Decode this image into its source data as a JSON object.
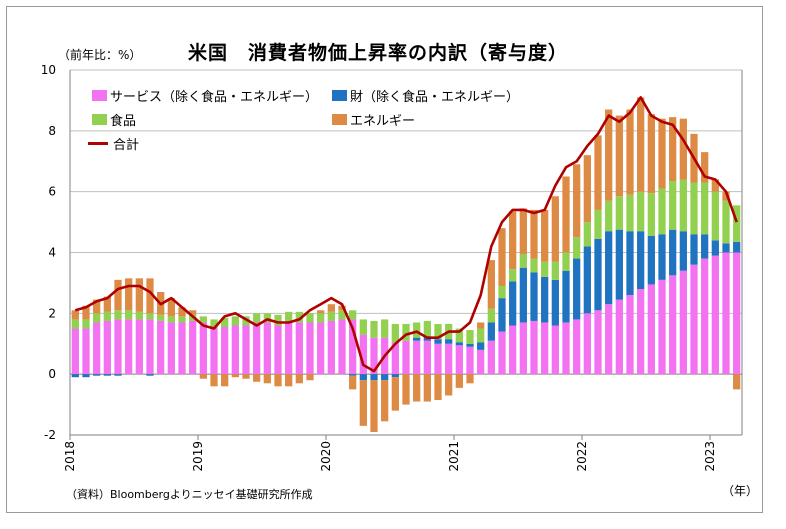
{
  "title": "米国　消費者物価上昇率の内訳（寄与度）",
  "unit_label": "（前年比：%）",
  "x_unit_label": "（年）",
  "source": "（資料）Bloombergよりニッセイ基礎研究所作成",
  "legend": {
    "services": "サービス（除く食品・エネルギー）",
    "goods": "財（除く食品・エネルギー）",
    "food": "食品",
    "energy": "エネルギー",
    "total": "合計"
  },
  "colors": {
    "services": "#f272f2",
    "goods": "#1f73c0",
    "food": "#92d050",
    "energy": "#dd8a45",
    "total": "#b00000",
    "grid": "#bfbfbf"
  },
  "chart_data": {
    "type": "bar",
    "stacked": true,
    "ylim": [
      -2,
      10
    ],
    "yticks": [
      -2,
      0,
      2,
      4,
      6,
      8,
      10
    ],
    "xtick_labels": [
      "2018",
      "2019",
      "2020",
      "2021",
      "2022",
      "2023"
    ],
    "grid": true,
    "categories": [
      "2018-01",
      "2018-02",
      "2018-03",
      "2018-04",
      "2018-05",
      "2018-06",
      "2018-07",
      "2018-08",
      "2018-09",
      "2018-10",
      "2018-11",
      "2018-12",
      "2019-01",
      "2019-02",
      "2019-03",
      "2019-04",
      "2019-05",
      "2019-06",
      "2019-07",
      "2019-08",
      "2019-09",
      "2019-10",
      "2019-11",
      "2019-12",
      "2020-01",
      "2020-02",
      "2020-03",
      "2020-04",
      "2020-05",
      "2020-06",
      "2020-07",
      "2020-08",
      "2020-09",
      "2020-10",
      "2020-11",
      "2020-12",
      "2021-01",
      "2021-02",
      "2021-03",
      "2021-04",
      "2021-05",
      "2021-06",
      "2021-07",
      "2021-08",
      "2021-09",
      "2021-10",
      "2021-11",
      "2021-12",
      "2022-01",
      "2022-02",
      "2022-03",
      "2022-04",
      "2022-05",
      "2022-06",
      "2022-07",
      "2022-08",
      "2022-09",
      "2022-10",
      "2022-11",
      "2022-12",
      "2023-01",
      "2023-02",
      "2023-03"
    ],
    "series": [
      {
        "name": "サービス（除く食品・エネルギー）",
        "key": "services",
        "values": [
          1.5,
          1.5,
          1.7,
          1.75,
          1.8,
          1.8,
          1.8,
          1.8,
          1.75,
          1.7,
          1.7,
          1.75,
          1.7,
          1.5,
          1.55,
          1.6,
          1.6,
          1.7,
          1.7,
          1.6,
          1.7,
          1.7,
          1.7,
          1.7,
          1.75,
          1.8,
          1.8,
          1.3,
          1.2,
          1.2,
          1.05,
          1.1,
          1.1,
          1.1,
          1.0,
          1.0,
          0.95,
          0.9,
          0.8,
          1.1,
          1.4,
          1.6,
          1.7,
          1.75,
          1.7,
          1.6,
          1.7,
          1.8,
          2.0,
          2.1,
          2.3,
          2.45,
          2.6,
          2.8,
          2.95,
          3.1,
          3.25,
          3.4,
          3.6,
          3.8,
          3.9,
          4.0,
          4.0
        ]
      },
      {
        "name": "財（除く食品・エネルギー）",
        "key": "goods",
        "values": [
          -0.1,
          -0.1,
          -0.05,
          -0.05,
          -0.05,
          0.0,
          0.0,
          -0.05,
          0.0,
          0.0,
          0.0,
          0.0,
          0.0,
          0.0,
          0.0,
          0.0,
          0.0,
          0.0,
          0.0,
          0.0,
          0.0,
          0.0,
          0.0,
          0.0,
          0.0,
          0.0,
          -0.05,
          -0.2,
          -0.2,
          -0.2,
          -0.1,
          0.0,
          0.1,
          0.15,
          0.15,
          0.15,
          0.1,
          0.1,
          0.25,
          0.6,
          1.1,
          1.45,
          1.8,
          1.6,
          1.5,
          1.5,
          1.7,
          2.0,
          2.2,
          2.35,
          2.4,
          2.3,
          2.1,
          1.9,
          1.6,
          1.5,
          1.5,
          1.3,
          1.0,
          0.8,
          0.5,
          0.3,
          0.35
        ]
      },
      {
        "name": "食品",
        "key": "food",
        "values": [
          0.3,
          0.3,
          0.3,
          0.3,
          0.3,
          0.3,
          0.25,
          0.2,
          0.2,
          0.2,
          0.2,
          0.2,
          0.2,
          0.3,
          0.3,
          0.3,
          0.3,
          0.3,
          0.3,
          0.35,
          0.35,
          0.35,
          0.3,
          0.3,
          0.3,
          0.3,
          0.3,
          0.5,
          0.55,
          0.6,
          0.6,
          0.55,
          0.5,
          0.5,
          0.5,
          0.5,
          0.45,
          0.45,
          0.45,
          0.45,
          0.4,
          0.4,
          0.45,
          0.45,
          0.5,
          0.6,
          0.6,
          0.7,
          0.8,
          0.95,
          1.0,
          1.1,
          1.2,
          1.3,
          1.4,
          1.5,
          1.6,
          1.7,
          1.7,
          1.7,
          1.6,
          1.4,
          1.2
        ]
      },
      {
        "name": "エネルギー",
        "key": "energy",
        "values": [
          0.3,
          0.45,
          0.45,
          0.5,
          1.0,
          1.05,
          1.1,
          1.15,
          0.75,
          0.6,
          0.3,
          0.15,
          -0.15,
          -0.4,
          -0.4,
          -0.1,
          -0.15,
          -0.25,
          -0.3,
          -0.4,
          -0.4,
          -0.3,
          -0.2,
          0.1,
          0.25,
          0.15,
          -0.45,
          -1.5,
          -1.7,
          -1.35,
          -1.1,
          -1.0,
          -0.9,
          -0.9,
          -0.85,
          -0.7,
          -0.45,
          -0.3,
          0.2,
          1.6,
          1.9,
          1.9,
          1.5,
          1.6,
          1.7,
          2.15,
          2.5,
          2.4,
          2.2,
          2.45,
          3.0,
          2.65,
          2.8,
          3.1,
          2.6,
          2.3,
          2.1,
          2.0,
          1.6,
          1.0,
          0.4,
          0.3,
          -0.5
        ]
      },
      {
        "name": "合計",
        "key": "total",
        "type": "line",
        "values": [
          2.1,
          2.2,
          2.4,
          2.5,
          2.8,
          2.9,
          2.9,
          2.7,
          2.3,
          2.5,
          2.2,
          1.9,
          1.6,
          1.5,
          1.9,
          2.0,
          1.8,
          1.6,
          1.8,
          1.7,
          1.7,
          1.8,
          2.1,
          2.3,
          2.5,
          2.3,
          1.5,
          0.3,
          0.1,
          0.6,
          1.0,
          1.3,
          1.4,
          1.2,
          1.2,
          1.4,
          1.4,
          1.7,
          2.6,
          4.2,
          5.0,
          5.4,
          5.4,
          5.3,
          5.4,
          6.2,
          6.8,
          7.0,
          7.5,
          7.9,
          8.5,
          8.3,
          8.6,
          9.1,
          8.5,
          8.3,
          8.2,
          7.7,
          7.1,
          6.5,
          6.4,
          6.0,
          5.0
        ]
      }
    ]
  }
}
